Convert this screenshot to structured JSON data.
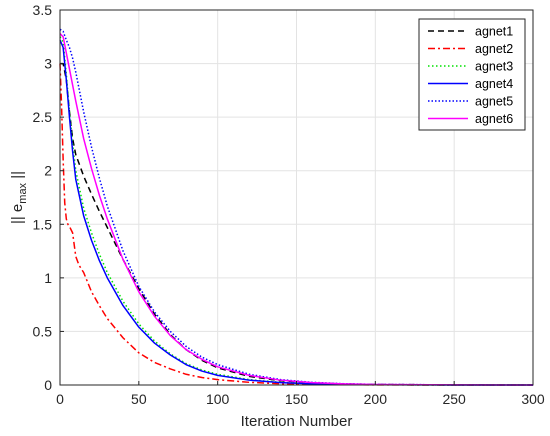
{
  "chart_data": {
    "type": "line",
    "title": "",
    "xlabel": "Iteration Number",
    "ylabel_main": "|| e",
    "ylabel_sub": "max",
    "ylabel_end": " ||",
    "xlim": [
      0,
      300
    ],
    "ylim": [
      0,
      3.5
    ],
    "xticks": [
      0,
      50,
      100,
      150,
      200,
      250,
      300
    ],
    "yticks": [
      0,
      0.5,
      1,
      1.5,
      2,
      2.5,
      3,
      3.5
    ],
    "xtick_labels": [
      "0",
      "50",
      "100",
      "150",
      "200",
      "250",
      "300"
    ],
    "ytick_labels": [
      "0",
      "0.5",
      "1",
      "1.5",
      "2",
      "2.5",
      "3",
      "3.5"
    ],
    "grid": true,
    "legend_position": "top-right",
    "series": [
      {
        "name": "agnet1",
        "color": "#000000",
        "dash": "dashed",
        "x": [
          0,
          2,
          4,
          6,
          8,
          10,
          15,
          20,
          25,
          30,
          40,
          50,
          60,
          70,
          80,
          90,
          100,
          120,
          140,
          160,
          180,
          200,
          250,
          300
        ],
        "y": [
          3.0,
          3.0,
          2.85,
          2.55,
          2.3,
          2.15,
          1.95,
          1.78,
          1.62,
          1.47,
          1.17,
          0.9,
          0.66,
          0.47,
          0.33,
          0.23,
          0.16,
          0.08,
          0.04,
          0.02,
          0.01,
          0.005,
          0.001,
          0.0
        ]
      },
      {
        "name": "agnet2",
        "color": "#ff0000",
        "dash": "dashdot",
        "x": [
          0,
          1,
          2,
          3,
          4,
          5,
          6,
          8,
          10,
          12,
          15,
          20,
          25,
          30,
          40,
          50,
          60,
          70,
          80,
          90,
          100,
          120,
          140,
          160,
          180,
          200,
          250,
          300
        ],
        "y": [
          3.0,
          2.6,
          2.1,
          1.7,
          1.55,
          1.5,
          1.48,
          1.42,
          1.2,
          1.12,
          1.05,
          0.87,
          0.74,
          0.62,
          0.44,
          0.3,
          0.21,
          0.15,
          0.1,
          0.07,
          0.05,
          0.025,
          0.012,
          0.006,
          0.003,
          0.001,
          0.0,
          0.0
        ]
      },
      {
        "name": "agnet3",
        "color": "#00e000",
        "dash": "dotted",
        "x": [
          0,
          2,
          4,
          6,
          8,
          10,
          15,
          20,
          25,
          30,
          40,
          50,
          60,
          70,
          80,
          90,
          100,
          120,
          140,
          160,
          180,
          200,
          250,
          300
        ],
        "y": [
          3.25,
          3.2,
          2.9,
          2.55,
          2.25,
          2.0,
          1.65,
          1.42,
          1.22,
          1.05,
          0.78,
          0.57,
          0.41,
          0.29,
          0.2,
          0.14,
          0.1,
          0.05,
          0.025,
          0.012,
          0.006,
          0.003,
          0.0,
          0.0
        ]
      },
      {
        "name": "agnet4",
        "color": "#0000ff",
        "dash": "solid",
        "x": [
          0,
          2,
          4,
          6,
          8,
          10,
          15,
          20,
          25,
          30,
          40,
          50,
          60,
          70,
          80,
          90,
          100,
          120,
          140,
          160,
          180,
          200,
          250,
          300
        ],
        "y": [
          3.22,
          3.15,
          2.85,
          2.5,
          2.18,
          1.92,
          1.58,
          1.35,
          1.16,
          1.0,
          0.74,
          0.54,
          0.39,
          0.28,
          0.19,
          0.13,
          0.09,
          0.045,
          0.022,
          0.011,
          0.005,
          0.002,
          0.0,
          0.0
        ]
      },
      {
        "name": "agnet5",
        "color": "#0000ff",
        "dash": "densedot",
        "x": [
          0,
          2,
          4,
          6,
          8,
          10,
          15,
          20,
          25,
          30,
          40,
          50,
          60,
          70,
          80,
          90,
          100,
          120,
          140,
          160,
          180,
          200,
          250,
          300
        ],
        "y": [
          3.32,
          3.3,
          3.22,
          3.15,
          3.05,
          2.92,
          2.55,
          2.22,
          1.93,
          1.67,
          1.25,
          0.92,
          0.68,
          0.5,
          0.36,
          0.26,
          0.19,
          0.1,
          0.05,
          0.025,
          0.012,
          0.006,
          0.001,
          0.0
        ]
      },
      {
        "name": "agnet6",
        "color": "#ff00ff",
        "dash": "solid",
        "x": [
          0,
          2,
          4,
          6,
          8,
          10,
          15,
          20,
          25,
          30,
          40,
          50,
          60,
          70,
          80,
          90,
          100,
          120,
          140,
          160,
          180,
          200,
          250,
          300
        ],
        "y": [
          3.28,
          3.25,
          3.1,
          2.95,
          2.8,
          2.65,
          2.3,
          2.02,
          1.77,
          1.55,
          1.17,
          0.87,
          0.64,
          0.46,
          0.33,
          0.24,
          0.17,
          0.09,
          0.045,
          0.022,
          0.011,
          0.005,
          0.001,
          0.0
        ]
      }
    ]
  }
}
